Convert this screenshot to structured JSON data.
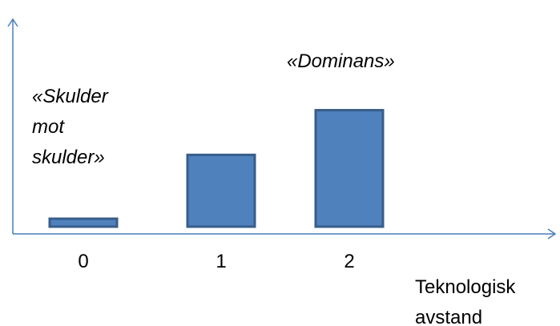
{
  "chart_data": {
    "type": "bar",
    "categories": [
      "0",
      "1",
      "2"
    ],
    "values": [
      0.5,
      4.5,
      7.3
    ],
    "ylim": [
      0,
      13
    ],
    "grid": false,
    "xlabel_lines": [
      "Teknologisk",
      "avstand"
    ],
    "ylabel": "",
    "annotations": [
      {
        "category": "0",
        "lines": [
          "«Skulder",
          "mot",
          "skulder»"
        ]
      },
      {
        "category": "2",
        "lines": [
          "«Dominans»"
        ]
      }
    ],
    "colors": {
      "bar_fill": "#4F81BD",
      "bar_stroke": "#385D8A",
      "axis": "#4A7EBB"
    }
  }
}
